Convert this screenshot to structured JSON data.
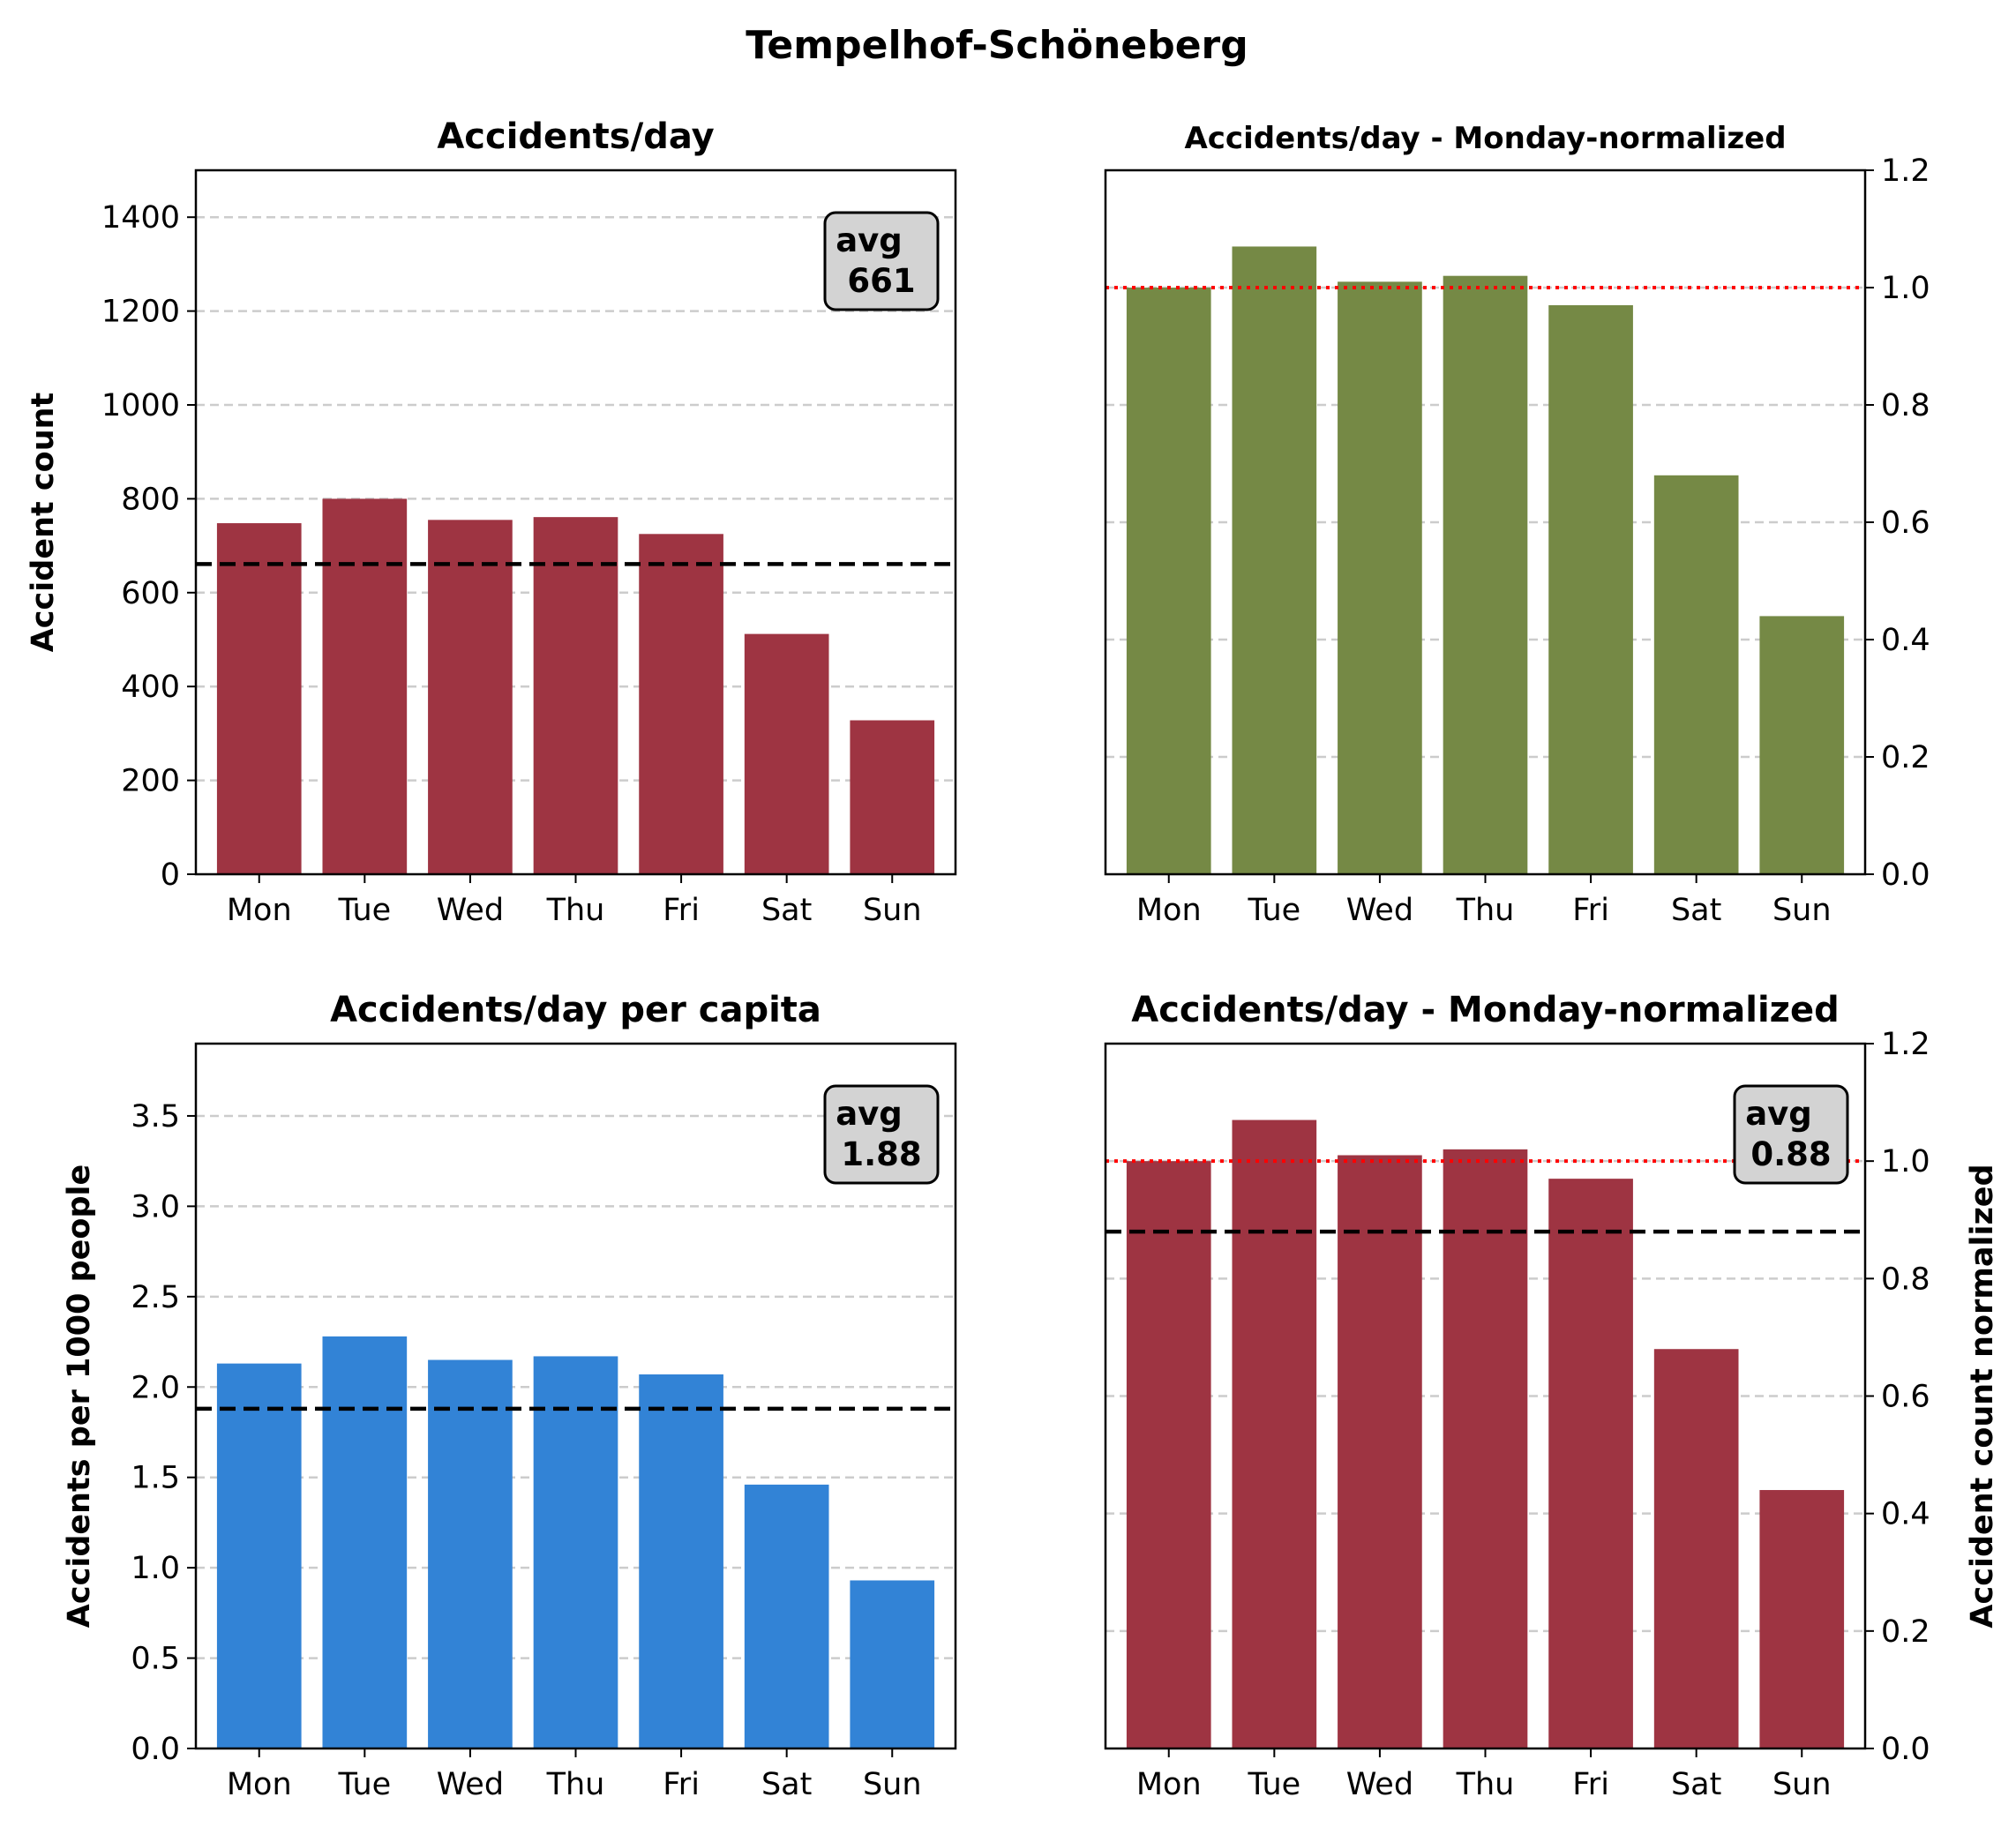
{
  "figure": {
    "title": "Tempelhof-Schöneberg"
  },
  "colors": {
    "bar_red": "#9e3442",
    "bar_green": "#758945",
    "bar_blue": "#3283d6",
    "avg_line": "#000000",
    "ref_line": "#ff0000",
    "grid": "#cccccc",
    "avg_box_fill": "#d3d3d3"
  },
  "chart_data": [
    {
      "id": "tl",
      "type": "bar",
      "title": "Accidents/day",
      "categories": [
        "Mon",
        "Tue",
        "Wed",
        "Thu",
        "Fri",
        "Sat",
        "Sun"
      ],
      "values": [
        748,
        800,
        755,
        761,
        725,
        512,
        328
      ],
      "ylabel": "Accident count",
      "ylim": [
        0,
        1500
      ],
      "yticks": [
        0,
        200,
        400,
        600,
        800,
        1000,
        1200,
        1400
      ],
      "ytick_labels": [
        "0",
        "200",
        "400",
        "600",
        "800",
        "1000",
        "1200",
        "1400"
      ],
      "y_axis_side": "left",
      "grid": "y-dashed",
      "avg_line": 661,
      "avg_label": [
        "avg",
        "661"
      ],
      "avg_box": "top-right",
      "bar_color_key": "bar_red"
    },
    {
      "id": "tr",
      "type": "bar",
      "title": "Accidents/day - Monday-normalized",
      "categories": [
        "Mon",
        "Tue",
        "Wed",
        "Thu",
        "Fri",
        "Sat",
        "Sun"
      ],
      "values": [
        1.0,
        1.07,
        1.01,
        1.02,
        0.97,
        0.68,
        0.44
      ],
      "ylabel": "",
      "ylim": [
        0,
        1.2
      ],
      "yticks": [
        0,
        0.2,
        0.4,
        0.6,
        0.8,
        1.0,
        1.2
      ],
      "ytick_labels": [
        "0.0",
        "0.2",
        "0.4",
        "0.6",
        "0.8",
        "1.0",
        "1.2"
      ],
      "y_axis_side": "right",
      "grid": "y-dashed",
      "ref_line": 1.0,
      "bar_color_key": "bar_green"
    },
    {
      "id": "bl",
      "type": "bar",
      "title": "Accidents/day per capita",
      "categories": [
        "Mon",
        "Tue",
        "Wed",
        "Thu",
        "Fri",
        "Sat",
        "Sun"
      ],
      "values": [
        2.13,
        2.28,
        2.15,
        2.17,
        2.07,
        1.46,
        0.93
      ],
      "ylabel": "Accidents per 1000 people",
      "ylim": [
        0,
        3.9
      ],
      "yticks": [
        0,
        0.5,
        1.0,
        1.5,
        2.0,
        2.5,
        3.0,
        3.5
      ],
      "ytick_labels": [
        "0.0",
        "0.5",
        "1.0",
        "1.5",
        "2.0",
        "2.5",
        "3.0",
        "3.5"
      ],
      "y_axis_side": "left",
      "grid": "y-dashed",
      "avg_line": 1.88,
      "avg_label": [
        "avg",
        "1.88"
      ],
      "avg_box": "top-right",
      "bar_color_key": "bar_blue"
    },
    {
      "id": "br",
      "type": "bar",
      "title": "Accidents/day - Monday-normalized",
      "categories": [
        "Mon",
        "Tue",
        "Wed",
        "Thu",
        "Fri",
        "Sat",
        "Sun"
      ],
      "values": [
        1.0,
        1.07,
        1.01,
        1.02,
        0.97,
        0.68,
        0.44
      ],
      "ylabel": "Accident count normalized",
      "ylim": [
        0,
        1.2
      ],
      "yticks": [
        0,
        0.2,
        0.4,
        0.6,
        0.8,
        1.0,
        1.2
      ],
      "ytick_labels": [
        "0.0",
        "0.2",
        "0.4",
        "0.6",
        "0.8",
        "1.0",
        "1.2"
      ],
      "y_axis_side": "right",
      "grid": "y-dashed",
      "ref_line": 1.0,
      "avg_line": 0.88,
      "avg_label": [
        "avg",
        "0.88"
      ],
      "avg_box": "top-right",
      "bar_color_key": "bar_red"
    }
  ]
}
